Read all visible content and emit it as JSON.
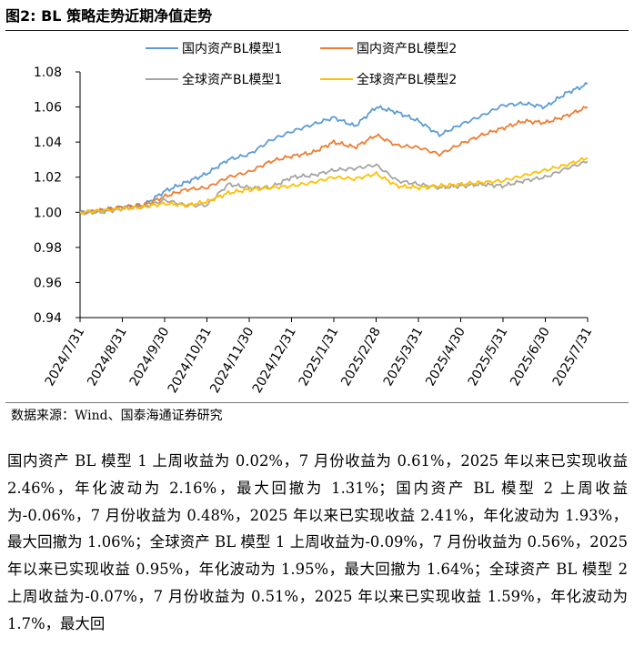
{
  "figure_title": "图2:  BL 策略走势近期净值走势",
  "source_text": "数据来源：Wind、国泰海通证券研究",
  "paragraph": "国内资产 BL 模型 1 上周收益为 0.02%，7 月份收益为 0.61%，2025 年以来已实现收益 2.46%，年化波动为 2.16%，最大回撤为 1.31%；国内资产 BL 模型 2 上周收益为-0.06%，7 月份收益为 0.48%，2025 年以来已实现收益 2.41%，年化波动为 1.93%，最大回撤为 1.06%；全球资产 BL 模型 1 上周收益为-0.09%，7 月份收益为 0.56%，2025 年以来已实现收益 0.95%，年化波动为 1.95%，最大回撤为 1.64%；全球资产 BL 模型 2 上周收益为-0.07%，7 月份收益为 0.51%，2025 年以来已实现收益 1.59%，年化波动为 1.7%，最大回",
  "chart_data": {
    "type": "line",
    "x_ticks": [
      "2024/7/31",
      "2024/8/31",
      "2024/9/30",
      "2024/10/31",
      "2024/11/30",
      "2024/12/31",
      "2025/1/31",
      "2025/2/28",
      "2025/3/31",
      "2025/4/30",
      "2025/5/31",
      "2025/6/30",
      "2025/7/31"
    ],
    "ylim": [
      0.94,
      1.08
    ],
    "y_ticks": [
      "0.94",
      "0.96",
      "0.98",
      "1.00",
      "1.02",
      "1.04",
      "1.06",
      "1.08"
    ],
    "legend_position": "top-center",
    "series": [
      {
        "name": "国内资产BL模型1",
        "color": "#5B9BD5",
        "values": [
          1.0,
          1.001,
          1.003,
          1.004,
          1.012,
          1.017,
          1.022,
          1.03,
          1.033,
          1.041,
          1.046,
          1.05,
          1.054,
          1.049,
          1.06,
          1.057,
          1.052,
          1.044,
          1.05,
          1.055,
          1.061,
          1.062,
          1.06,
          1.068,
          1.073
        ]
      },
      {
        "name": "国内资产BL模型2",
        "color": "#ED7D31",
        "values": [
          1.0,
          1.001,
          1.003,
          1.004,
          1.009,
          1.013,
          1.014,
          1.02,
          1.023,
          1.029,
          1.032,
          1.034,
          1.04,
          1.037,
          1.044,
          1.038,
          1.037,
          1.033,
          1.039,
          1.044,
          1.048,
          1.052,
          1.051,
          1.055,
          1.06
        ]
      },
      {
        "name": "全球资产BL模型1",
        "color": "#A5A5A5",
        "values": [
          1.0,
          1.0,
          1.002,
          1.003,
          1.007,
          1.004,
          1.004,
          1.016,
          1.014,
          1.014,
          1.02,
          1.021,
          1.024,
          1.025,
          1.027,
          1.018,
          1.016,
          1.014,
          1.015,
          1.016,
          1.015,
          1.018,
          1.02,
          1.025,
          1.029
        ]
      },
      {
        "name": "全球资产BL模型2",
        "color": "#FFC000",
        "values": [
          1.0,
          1.001,
          1.002,
          1.003,
          1.005,
          1.004,
          1.006,
          1.011,
          1.013,
          1.014,
          1.015,
          1.017,
          1.02,
          1.019,
          1.022,
          1.015,
          1.014,
          1.015,
          1.016,
          1.017,
          1.018,
          1.021,
          1.024,
          1.027,
          1.031
        ]
      }
    ]
  }
}
